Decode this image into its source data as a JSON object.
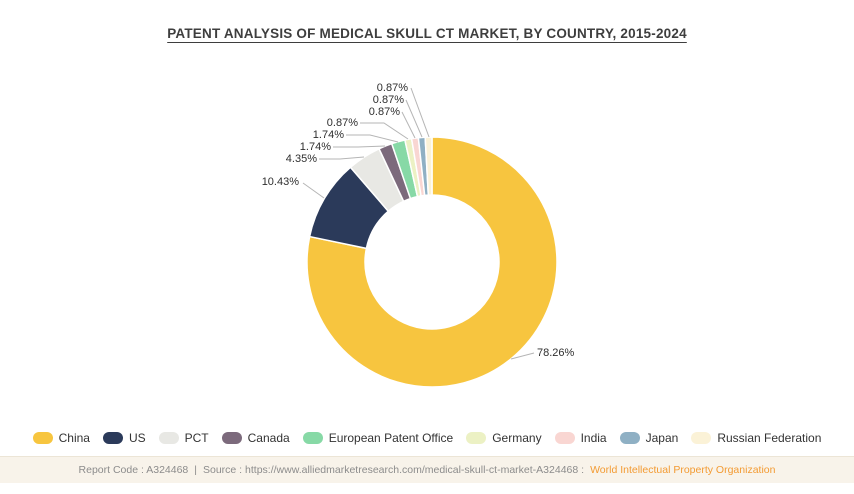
{
  "title": "PATENT ANALYSIS OF MEDICAL SKULL CT MARKET, BY COUNTRY, 2015-2024",
  "chart_data": {
    "type": "pie",
    "subtype": "donut",
    "title": "PATENT ANALYSIS OF MEDICAL SKULL CT MARKET, BY COUNTRY, 2015-2024",
    "unit": "%",
    "start_angle_deg": 0,
    "direction": "clockwise",
    "legend_position": "bottom",
    "slices": [
      {
        "label": "China",
        "value": 78.26,
        "pct_label": "78.26%",
        "color": "#F7C53F"
      },
      {
        "label": "US",
        "value": 10.43,
        "pct_label": "10.43%",
        "color": "#2B3A5A"
      },
      {
        "label": "PCT",
        "value": 4.35,
        "pct_label": "4.35%",
        "color": "#E8E8E4"
      },
      {
        "label": "Canada",
        "value": 1.74,
        "pct_label": "1.74%",
        "color": "#7C6A7C"
      },
      {
        "label": "European Patent Office",
        "value": 1.74,
        "pct_label": "1.74%",
        "color": "#87D9A6"
      },
      {
        "label": "Germany",
        "value": 0.87,
        "pct_label": "0.87%",
        "color": "#ECF1C4"
      },
      {
        "label": "India",
        "value": 0.87,
        "pct_label": "0.87%",
        "color": "#F9D6D2"
      },
      {
        "label": "Japan",
        "value": 0.87,
        "pct_label": "0.87%",
        "color": "#8FB0C4"
      },
      {
        "label": "Russian Federation",
        "value": 0.87,
        "pct_label": "0.87%",
        "color": "#FBF2D7"
      }
    ]
  },
  "footer": {
    "report_code": "Report Code : A324468",
    "separator": "|",
    "source": "Source : https://www.alliedmarketresearch.com/medical-skull-ct-market-A324468 :",
    "organization": "World Intellectual Property Organization",
    "organization_color": "#F39B33"
  }
}
